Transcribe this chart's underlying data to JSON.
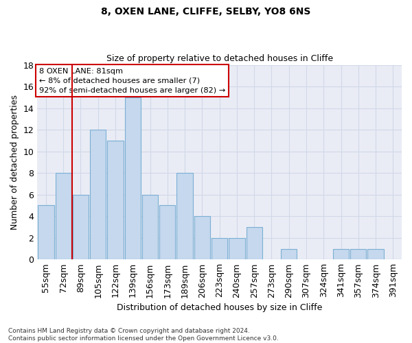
{
  "title1": "8, OXEN LANE, CLIFFE, SELBY, YO8 6NS",
  "title2": "Size of property relative to detached houses in Cliffe",
  "xlabel": "Distribution of detached houses by size in Cliffe",
  "ylabel": "Number of detached properties",
  "categories": [
    "55sqm",
    "72sqm",
    "89sqm",
    "105sqm",
    "122sqm",
    "139sqm",
    "156sqm",
    "173sqm",
    "189sqm",
    "206sqm",
    "223sqm",
    "240sqm",
    "257sqm",
    "273sqm",
    "290sqm",
    "307sqm",
    "324sqm",
    "341sqm",
    "357sqm",
    "374sqm",
    "391sqm"
  ],
  "values": [
    5,
    8,
    6,
    12,
    11,
    15,
    6,
    5,
    8,
    4,
    2,
    2,
    3,
    0,
    1,
    0,
    0,
    1,
    1,
    1,
    0
  ],
  "bar_color": "#c5d8ed",
  "bar_edge_color": "#7aafd4",
  "grid_color": "#d0d8e8",
  "bg_color": "#eaecf5",
  "annotation_line1": "8 OXEN LANE: 81sqm",
  "annotation_line2": "← 8% of detached houses are smaller (7)",
  "annotation_line3": "92% of semi-detached houses are larger (82) →",
  "vline_x_index": 1.5,
  "vline_color": "#cc0000",
  "footnote": "Contains HM Land Registry data © Crown copyright and database right 2024.\nContains public sector information licensed under the Open Government Licence v3.0.",
  "ylim": [
    0,
    18
  ],
  "yticks": [
    0,
    2,
    4,
    6,
    8,
    10,
    12,
    14,
    16,
    18
  ]
}
